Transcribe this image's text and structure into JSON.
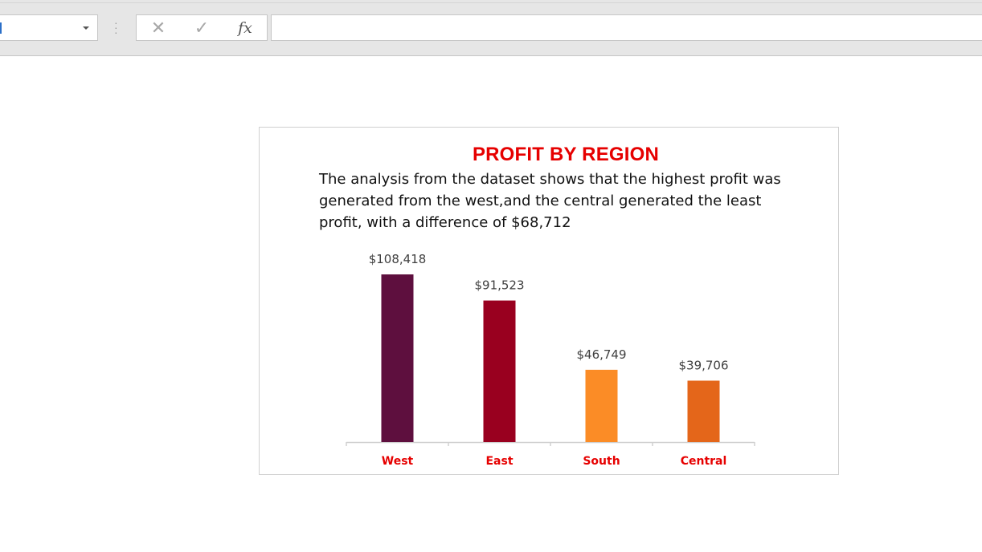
{
  "chart_data": {
    "type": "bar",
    "title": "PROFIT BY REGION",
    "description": "The analysis from the dataset shows that the highest profit was generated from the west,and the central generated the least profit, with a difference of $68,712",
    "categories": [
      "West",
      "East",
      "South",
      "Central"
    ],
    "values": [
      108418,
      91523,
      46749,
      39706
    ],
    "value_labels": [
      "$108,418",
      "$91,523",
      "$46,749",
      "$39,706"
    ],
    "colors": [
      "#5e0f3e",
      "#99001f",
      "#fb8c26",
      "#e4661a"
    ],
    "category_label_color": "#e60000",
    "xlabel": "",
    "ylabel": "",
    "ylim": [
      0,
      108418
    ],
    "grid": false,
    "legend": "none"
  }
}
